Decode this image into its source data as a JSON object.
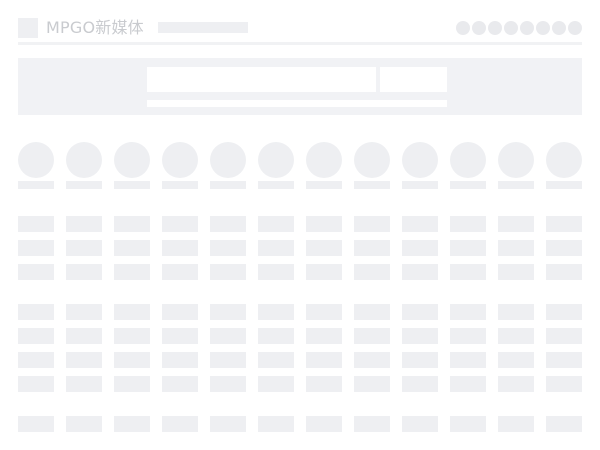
{
  "header": {
    "logo_text": "MPGO新媒体",
    "action_icons": [
      "placeholder-dot",
      "placeholder-dot",
      "placeholder-dot",
      "placeholder-dot",
      "placeholder-dot",
      "placeholder-dot",
      "placeholder-dot",
      "placeholder-dot"
    ]
  },
  "colors": {
    "skeleton": "#eeeff2",
    "banner": "#f1f2f5",
    "logo_text": "#c9cbcf",
    "background": "#ffffff"
  },
  "content": {
    "category_count": 12,
    "grid_groups": [
      {
        "rows": 3
      },
      {
        "rows": 4
      },
      {
        "rows": 1
      }
    ]
  }
}
